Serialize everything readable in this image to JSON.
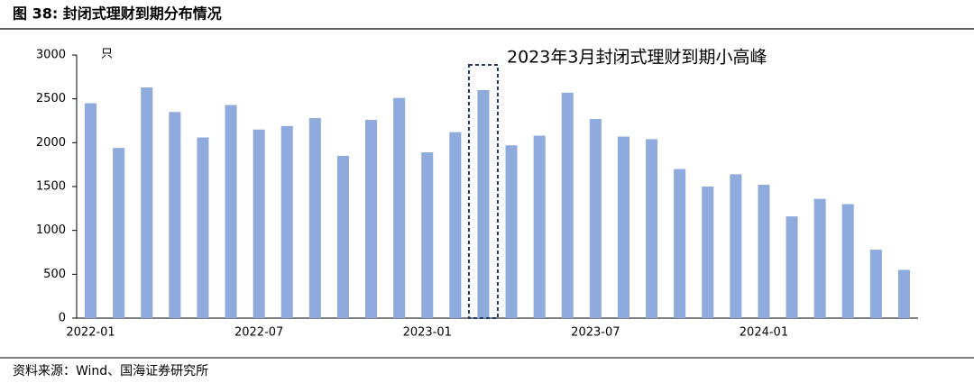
{
  "chart_data": {
    "type": "bar",
    "title": "图 38:  封闭式理财到期分布情况",
    "y_label": "只",
    "annotation": "2023年3月封闭式理财到期小高峰",
    "source": "资料来源：Wind、国海证券研究所",
    "categories": [
      "2022-01",
      null,
      null,
      null,
      null,
      null,
      "2022-07",
      null,
      null,
      null,
      null,
      null,
      "2023-01",
      null,
      null,
      null,
      null,
      null,
      "2023-07",
      null,
      null,
      null,
      null,
      null,
      "2024-01",
      null,
      null,
      null,
      null,
      null
    ],
    "values": [
      2450,
      1940,
      2630,
      2350,
      2060,
      2430,
      2150,
      2190,
      2280,
      1850,
      2260,
      2510,
      1890,
      2120,
      2600,
      1970,
      2080,
      2570,
      2270,
      2070,
      2040,
      1700,
      1500,
      1640,
      1520,
      1160,
      1360,
      1300,
      780,
      550
    ],
    "color": "#8faadc",
    "ylim": [
      0,
      3000
    ],
    "yticks": [
      0,
      500,
      1000,
      1500,
      2000,
      2500,
      3000
    ],
    "grid": false
  }
}
